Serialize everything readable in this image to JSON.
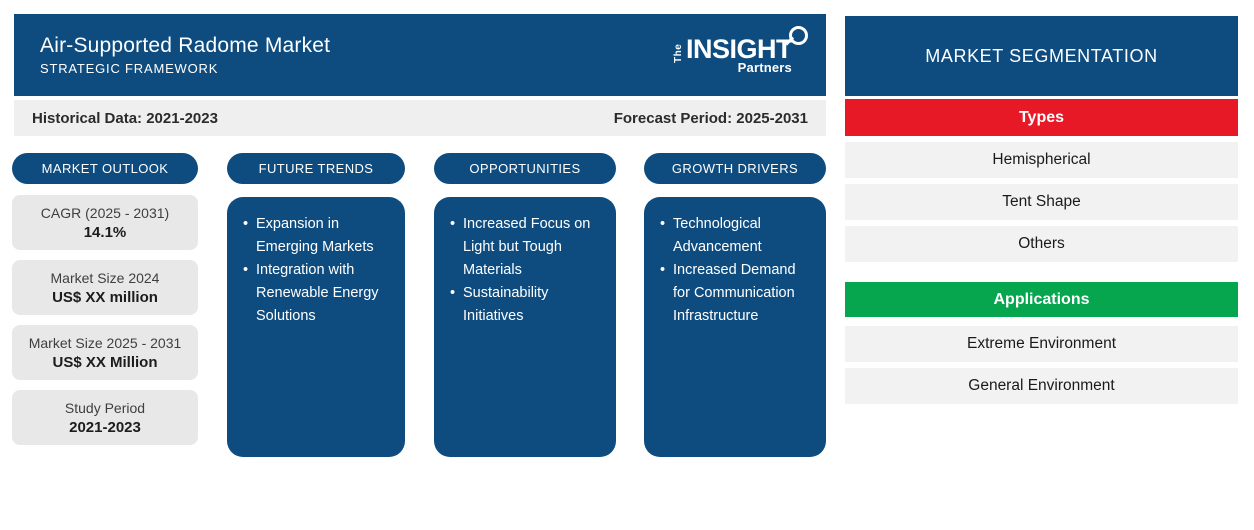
{
  "header": {
    "title": "Air-Supported Radome Market",
    "subtitle": "STRATEGIC FRAMEWORK",
    "logo": {
      "the": "The",
      "insight": "INSIGHT",
      "partners": "Partners",
      "icon": "magnifier-circle"
    }
  },
  "period_bar": {
    "historical": "Historical Data: 2021-2023",
    "forecast": "Forecast Period: 2025-2031"
  },
  "outlook": {
    "label": "MARKET OUTLOOK",
    "stats": [
      {
        "label": "CAGR (2025 - 2031)",
        "value": "14.1%"
      },
      {
        "label": "Market Size 2024",
        "value": "US$ XX million"
      },
      {
        "label": "Market Size 2025 - 2031",
        "value": "US$ XX Million"
      },
      {
        "label": "Study Period",
        "value": "2021-2023"
      }
    ]
  },
  "columns": [
    {
      "label": "FUTURE TRENDS",
      "items": [
        "Expansion in Emerging Markets",
        "Integration with Renewable Energy Solutions"
      ]
    },
    {
      "label": "OPPORTUNITIES",
      "items": [
        "Increased Focus on Light but Tough Materials",
        "Sustainability Initiatives"
      ]
    },
    {
      "label": "GROWTH DRIVERS",
      "items": [
        "Technological Advancement",
        "Increased Demand for Communication Infrastructure"
      ]
    }
  ],
  "segmentation": {
    "title": "MARKET SEGMENTATION",
    "groups": [
      {
        "label": "Types",
        "color": "#E81926",
        "items": [
          "Hemispherical",
          "Tent Shape",
          "Others"
        ]
      },
      {
        "label": "Applications",
        "color": "#06A64F",
        "items": [
          "Extreme Environment",
          "General Environment"
        ]
      }
    ]
  },
  "colors": {
    "primary_blue": "#0E4C80",
    "types_red": "#E81926",
    "applications_green": "#06A64F",
    "light_gray_bar": "#F2F2F2",
    "stat_box_gray": "#E8E8E8",
    "period_bar_gray": "#EFEFEF"
  }
}
